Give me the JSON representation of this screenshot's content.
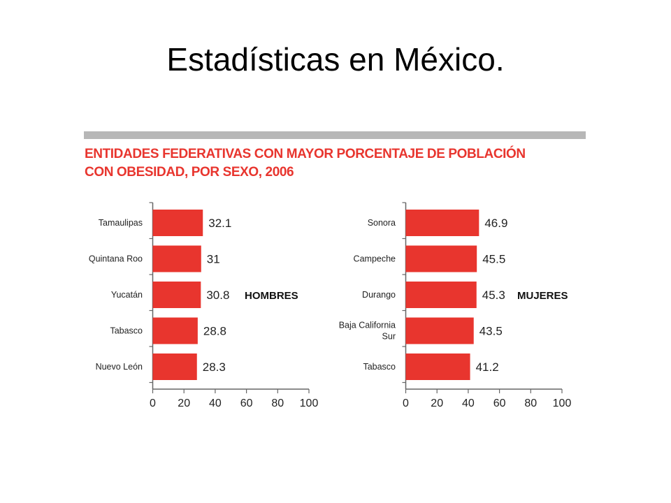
{
  "slide": {
    "title": "Estadísticas en México."
  },
  "chart_title_lines": [
    "ENTIDADES FEDERATIVAS CON MAYOR PORCENTAJE DE POBLACIÓN",
    "CON OBESIDAD, POR SEXO, 2006"
  ],
  "colors": {
    "bar": "#e8352e",
    "title": "#e8352e",
    "rule": "#b7b7b7",
    "axis": "#666666"
  },
  "chart_data": [
    {
      "type": "bar",
      "orientation": "horizontal",
      "series_label": "HOMBRES",
      "categories": [
        "Tamaulipas",
        "Quintana Roo",
        "Yucatán",
        "Tabasco",
        "Nuevo León"
      ],
      "values": [
        32.1,
        31,
        30.8,
        28.8,
        28.3
      ],
      "value_labels": [
        "32.1",
        "31",
        "30.8",
        "28.8",
        "28.3"
      ],
      "xlim": [
        0,
        100
      ],
      "ticks": [
        0,
        20,
        40,
        60,
        80,
        100
      ],
      "grid": false
    },
    {
      "type": "bar",
      "orientation": "horizontal",
      "series_label": "MUJERES",
      "categories": [
        "Sonora",
        "Campeche",
        "Durango",
        "Baja California Sur",
        "Tabasco"
      ],
      "values": [
        46.9,
        45.5,
        45.3,
        43.5,
        41.2
      ],
      "value_labels": [
        "46.9",
        "45.5",
        "45.3",
        "43.5",
        "41.2"
      ],
      "xlim": [
        0,
        100
      ],
      "ticks": [
        0,
        20,
        40,
        60,
        80,
        100
      ],
      "grid": false
    }
  ]
}
